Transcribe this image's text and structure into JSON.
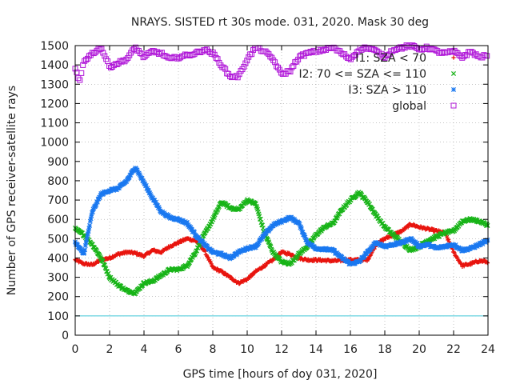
{
  "chart_data": {
    "type": "scatter",
    "title": "NRAYS. SISTED rt 30s mode. 031, 2020. Mask 30 deg",
    "xlabel": "GPS time [hours of doy 031, 2020]",
    "ylabel": "Number of GPS receiver-satellite rays",
    "xlim": [
      0,
      24
    ],
    "ylim": [
      0,
      1500
    ],
    "x_ticks": [
      0,
      2,
      4,
      6,
      8,
      10,
      12,
      14,
      16,
      18,
      20,
      22,
      24
    ],
    "y_ticks": [
      0,
      100,
      200,
      300,
      400,
      500,
      600,
      700,
      800,
      900,
      1000,
      1100,
      1200,
      1300,
      1400,
      1500
    ],
    "grid": true,
    "legend_position": "top-right",
    "reference_line": {
      "y": 100,
      "color": "#40c8d8"
    },
    "series": [
      {
        "name": "I1: SZA < 70",
        "marker": "+",
        "color": "#e8140e",
        "points": [
          [
            0,
            390
          ],
          [
            0.5,
            370
          ],
          [
            1,
            365
          ],
          [
            1.5,
            390
          ],
          [
            2,
            400
          ],
          [
            2.5,
            420
          ],
          [
            3,
            430
          ],
          [
            3.5,
            425
          ],
          [
            4,
            410
          ],
          [
            4.5,
            440
          ],
          [
            5,
            430
          ],
          [
            5.5,
            460
          ],
          [
            6,
            480
          ],
          [
            6.5,
            500
          ],
          [
            7,
            490
          ],
          [
            7.5,
            440
          ],
          [
            8,
            350
          ],
          [
            8.5,
            330
          ],
          [
            9,
            300
          ],
          [
            9.5,
            270
          ],
          [
            10,
            290
          ],
          [
            10.5,
            330
          ],
          [
            11,
            360
          ],
          [
            11.5,
            390
          ],
          [
            12,
            430
          ],
          [
            12.5,
            420
          ],
          [
            13,
            400
          ],
          [
            13.5,
            390
          ],
          [
            14,
            390
          ],
          [
            15,
            385
          ],
          [
            16,
            390
          ],
          [
            17,
            390
          ],
          [
            17.5,
            470
          ],
          [
            18,
            500
          ],
          [
            18.5,
            520
          ],
          [
            19,
            540
          ],
          [
            19.5,
            575
          ],
          [
            20,
            560
          ],
          [
            20.5,
            550
          ],
          [
            21,
            540
          ],
          [
            21.5,
            530
          ],
          [
            22,
            430
          ],
          [
            22.5,
            360
          ],
          [
            23,
            370
          ],
          [
            23.5,
            385
          ],
          [
            24,
            380
          ]
        ]
      },
      {
        "name": "I2: 70 <= SZA <= 110",
        "marker": "x",
        "color": "#18b418",
        "points": [
          [
            0,
            550
          ],
          [
            0.5,
            520
          ],
          [
            1,
            470
          ],
          [
            1.5,
            400
          ],
          [
            2,
            300
          ],
          [
            2.5,
            260
          ],
          [
            3,
            230
          ],
          [
            3.5,
            220
          ],
          [
            4,
            270
          ],
          [
            4.5,
            280
          ],
          [
            5,
            310
          ],
          [
            5.5,
            340
          ],
          [
            6,
            340
          ],
          [
            6.5,
            360
          ],
          [
            7,
            430
          ],
          [
            7.5,
            520
          ],
          [
            8,
            600
          ],
          [
            8.5,
            690
          ],
          [
            9,
            660
          ],
          [
            9.5,
            650
          ],
          [
            10,
            700
          ],
          [
            10.5,
            680
          ],
          [
            11,
            530
          ],
          [
            11.5,
            430
          ],
          [
            12,
            380
          ],
          [
            12.5,
            370
          ],
          [
            13,
            420
          ],
          [
            13.5,
            460
          ],
          [
            14,
            520
          ],
          [
            14.5,
            560
          ],
          [
            15,
            580
          ],
          [
            15.5,
            650
          ],
          [
            16,
            700
          ],
          [
            16.5,
            740
          ],
          [
            17,
            690
          ],
          [
            17.5,
            620
          ],
          [
            18,
            560
          ],
          [
            18.5,
            520
          ],
          [
            19,
            480
          ],
          [
            19.5,
            440
          ],
          [
            20,
            460
          ],
          [
            20.5,
            490
          ],
          [
            21,
            510
          ],
          [
            21.5,
            530
          ],
          [
            22,
            540
          ],
          [
            22.5,
            590
          ],
          [
            23,
            600
          ],
          [
            23.5,
            590
          ],
          [
            24,
            570
          ]
        ]
      },
      {
        "name": "I3: SZA > 110",
        "marker": "*",
        "color": "#1a78f0",
        "points": [
          [
            0,
            480
          ],
          [
            0.5,
            420
          ],
          [
            1,
            640
          ],
          [
            1.5,
            730
          ],
          [
            2,
            750
          ],
          [
            2.5,
            760
          ],
          [
            3,
            800
          ],
          [
            3.5,
            870
          ],
          [
            4,
            790
          ],
          [
            4.5,
            710
          ],
          [
            5,
            640
          ],
          [
            5.5,
            610
          ],
          [
            6,
            600
          ],
          [
            6.5,
            580
          ],
          [
            7,
            520
          ],
          [
            7.5,
            470
          ],
          [
            8,
            430
          ],
          [
            8.5,
            420
          ],
          [
            9,
            400
          ],
          [
            9.5,
            430
          ],
          [
            10,
            450
          ],
          [
            10.5,
            460
          ],
          [
            11,
            520
          ],
          [
            11.5,
            570
          ],
          [
            12,
            590
          ],
          [
            12.5,
            610
          ],
          [
            13,
            580
          ],
          [
            13.5,
            480
          ],
          [
            14,
            450
          ],
          [
            15,
            440
          ],
          [
            15.5,
            400
          ],
          [
            16,
            370
          ],
          [
            16.5,
            380
          ],
          [
            17,
            430
          ],
          [
            17.5,
            480
          ],
          [
            18,
            460
          ],
          [
            18.5,
            470
          ],
          [
            19,
            480
          ],
          [
            19.5,
            500
          ],
          [
            20,
            460
          ],
          [
            20.5,
            470
          ],
          [
            21,
            450
          ],
          [
            21.5,
            460
          ],
          [
            22,
            470
          ],
          [
            22.5,
            440
          ],
          [
            23,
            450
          ],
          [
            23.5,
            470
          ],
          [
            24,
            490
          ]
        ]
      },
      {
        "name": "global",
        "marker": "square",
        "color": "#b018d8",
        "points": [
          [
            0,
            1380
          ],
          [
            0.25,
            1310
          ],
          [
            0.5,
            1420
          ],
          [
            1,
            1460
          ],
          [
            1.5,
            1490
          ],
          [
            2,
            1390
          ],
          [
            2.5,
            1410
          ],
          [
            3,
            1430
          ],
          [
            3.5,
            1490
          ],
          [
            4,
            1440
          ],
          [
            4.5,
            1470
          ],
          [
            5,
            1460
          ],
          [
            5.5,
            1430
          ],
          [
            6,
            1440
          ],
          [
            6.5,
            1450
          ],
          [
            7,
            1460
          ],
          [
            7.5,
            1480
          ],
          [
            8,
            1460
          ],
          [
            8.5,
            1400
          ],
          [
            9,
            1340
          ],
          [
            9.5,
            1340
          ],
          [
            10,
            1430
          ],
          [
            10.5,
            1490
          ],
          [
            11,
            1470
          ],
          [
            11.5,
            1430
          ],
          [
            12,
            1350
          ],
          [
            12.5,
            1370
          ],
          [
            13,
            1440
          ],
          [
            13.5,
            1460
          ],
          [
            14,
            1470
          ],
          [
            14.5,
            1480
          ],
          [
            15,
            1490
          ],
          [
            15.5,
            1460
          ],
          [
            16,
            1430
          ],
          [
            16.5,
            1480
          ],
          [
            17,
            1490
          ],
          [
            17.5,
            1470
          ],
          [
            18,
            1440
          ],
          [
            18.5,
            1480
          ],
          [
            19,
            1490
          ],
          [
            19.5,
            1500
          ],
          [
            20,
            1480
          ],
          [
            20.5,
            1490
          ],
          [
            21,
            1470
          ],
          [
            21.5,
            1460
          ],
          [
            22,
            1470
          ],
          [
            22.5,
            1440
          ],
          [
            23,
            1470
          ],
          [
            23.5,
            1440
          ],
          [
            24,
            1450
          ]
        ]
      }
    ]
  }
}
